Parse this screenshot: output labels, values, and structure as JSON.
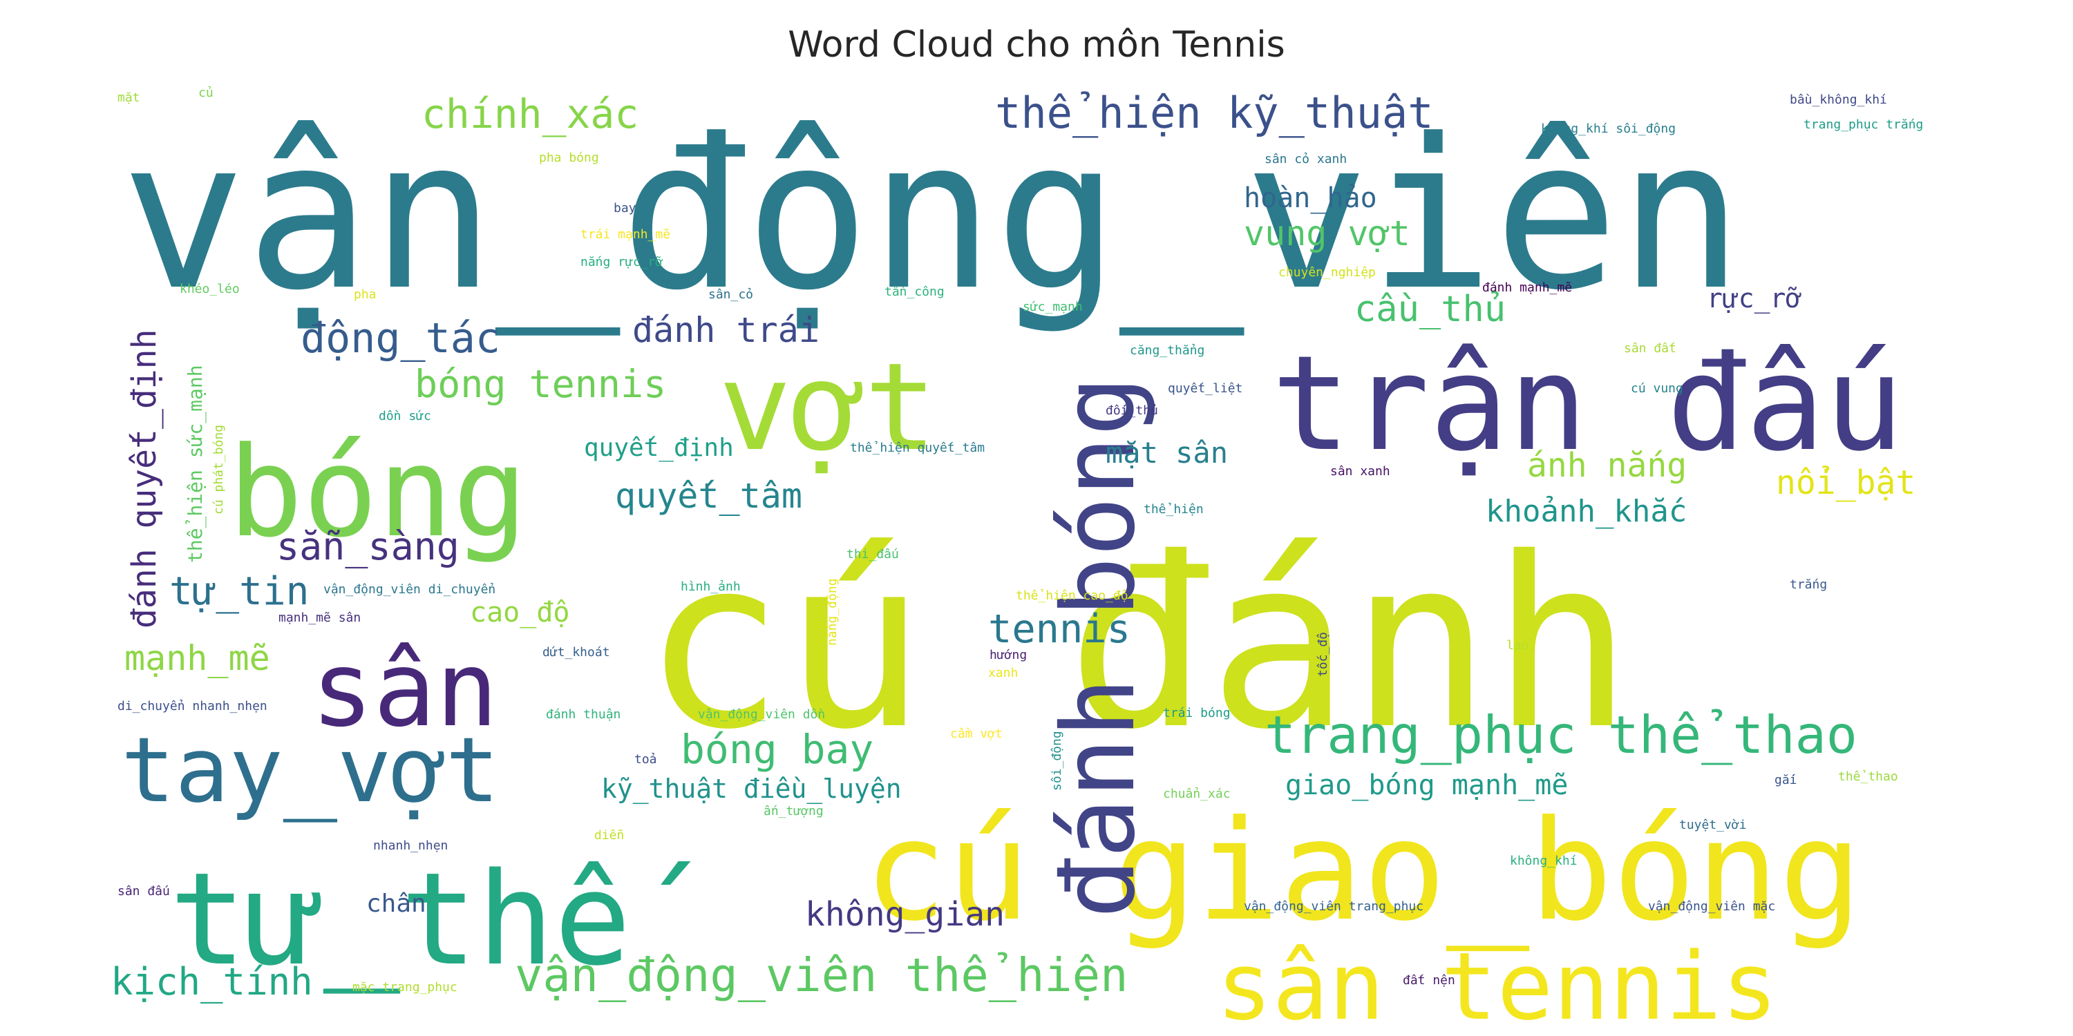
{
  "chart_data": {
    "type": "wordcloud",
    "title": "Word Cloud cho môn Tennis",
    "words": [
      {
        "text": "vận_động_viên",
        "weight": 100,
        "color": "#2c7b8c"
      },
      {
        "text": "cú đánh",
        "weight": 98,
        "color": "#cde11d"
      },
      {
        "text": "trận đấu",
        "weight": 66,
        "color": "#433e85"
      },
      {
        "text": "bóng",
        "weight": 64,
        "color": "#7ad151"
      },
      {
        "text": "vợt",
        "weight": 58,
        "color": "#a5db36"
      },
      {
        "text": "cú giao_bóng",
        "weight": 70,
        "color": "#f1e51d"
      },
      {
        "text": "tư_thế",
        "weight": 64,
        "color": "#23a983"
      },
      {
        "text": "sân",
        "weight": 50,
        "color": "#482979"
      },
      {
        "text": "tay_vợt",
        "weight": 42,
        "color": "#2e6f8e"
      },
      {
        "text": "đánh bóng",
        "weight": 46,
        "color": "#414487"
      },
      {
        "text": "sân tennis",
        "weight": 43,
        "color": "#f4e61e"
      },
      {
        "text": "trang_phục thể_thao",
        "weight": 24,
        "color": "#35b779"
      },
      {
        "text": "vận_động_viên thể_hiện",
        "weight": 21,
        "color": "#5cc863"
      },
      {
        "text": "thể_hiện kỹ_thuật",
        "weight": 19,
        "color": "#3b518b"
      },
      {
        "text": "chính_xác",
        "weight": 18,
        "color": "#86d549"
      },
      {
        "text": "động_tác",
        "weight": 18,
        "color": "#365c8d"
      },
      {
        "text": "đánh trái",
        "weight": 16,
        "color": "#3e4a89"
      },
      {
        "text": "bóng tennis",
        "weight": 17,
        "color": "#6ece58"
      },
      {
        "text": "cầu_thủ",
        "weight": 16,
        "color": "#48c16e"
      },
      {
        "text": "vung vợt",
        "weight": 16,
        "color": "#52c569"
      },
      {
        "text": "hoàn_hảo",
        "weight": 13,
        "color": "#31668e"
      },
      {
        "text": "rực_rỡ",
        "weight": 12,
        "color": "#424086"
      },
      {
        "text": "đánh quyết_định",
        "weight": 15,
        "color": "#472d7b"
      },
      {
        "text": "quyết_tâm",
        "weight": 15,
        "color": "#25858e"
      },
      {
        "text": "quyết_định",
        "weight": 11,
        "color": "#1fa088"
      },
      {
        "text": "mặt sân",
        "weight": 13,
        "color": "#277f8e"
      },
      {
        "text": "ánh nắng",
        "weight": 15,
        "color": "#95d840"
      },
      {
        "text": "nổi_bật",
        "weight": 15,
        "color": "#e2e418"
      },
      {
        "text": "khoảnh_khắc",
        "weight": 14,
        "color": "#1f958b"
      },
      {
        "text": "sẵn_sàng",
        "weight": 17,
        "color": "#46327e"
      },
      {
        "text": "tự_tin",
        "weight": 18,
        "color": "#2d708e"
      },
      {
        "text": "tennis",
        "weight": 18,
        "color": "#2a788e"
      },
      {
        "text": "cao_độ",
        "weight": 12,
        "color": "#93d741"
      },
      {
        "text": "mạnh_mẽ",
        "weight": 16,
        "color": "#8ed645"
      },
      {
        "text": "bóng bay",
        "weight": 18,
        "color": "#3fbc73"
      },
      {
        "text": "giao_bóng mạnh_mẽ",
        "weight": 13,
        "color": "#1f9a8a"
      },
      {
        "text": "kỹ_thuật điều_luyện",
        "weight": 12,
        "color": "#20928c"
      },
      {
        "text": "không_gian",
        "weight": 15,
        "color": "#443983"
      },
      {
        "text": "chân",
        "weight": 11,
        "color": "#38588c"
      },
      {
        "text": "kịch_tính",
        "weight": 17,
        "color": "#22a785"
      },
      {
        "text": "thể_hiện sức_mạnh",
        "weight": 8,
        "color": "#5ec962"
      },
      {
        "text": "bầu_không_khí",
        "weight": 5,
        "color": "#3e4989"
      },
      {
        "text": "không_khí sôi_động",
        "weight": 5,
        "color": "#277e8e"
      },
      {
        "text": "trang_phục trắng",
        "weight": 5,
        "color": "#1e9c89"
      },
      {
        "text": "mặt",
        "weight": 4,
        "color": "#a0da39"
      },
      {
        "text": "củ",
        "weight": 4,
        "color": "#7fd34e"
      },
      {
        "text": "pha bóng",
        "weight": 5,
        "color": "#b5de2b"
      },
      {
        "text": "sân cỏ xanh",
        "weight": 5,
        "color": "#2a768e"
      },
      {
        "text": "bay",
        "weight": 5,
        "color": "#3b528b"
      },
      {
        "text": "trái mạnh_mẽ",
        "weight": 5,
        "color": "#f6e620"
      },
      {
        "text": "nắng rực_rỡ",
        "weight": 5,
        "color": "#29af7f"
      },
      {
        "text": "chuyên_nghiệp",
        "weight": 5,
        "color": "#d2e21b"
      },
      {
        "text": "đánh mạnh_mẽ",
        "weight": 5,
        "color": "#440154"
      },
      {
        "text": "khéo_léo",
        "weight": 5,
        "color": "#63cb5f"
      },
      {
        "text": "pha",
        "weight": 5,
        "color": "#dde318"
      },
      {
        "text": "sân_cỏ",
        "weight": 5,
        "color": "#2d718e"
      },
      {
        "text": "tấn_công",
        "weight": 5,
        "color": "#2db27d"
      },
      {
        "text": "sức_mạnh",
        "weight": 5,
        "color": "#40bd72"
      },
      {
        "text": "căng_thẳng",
        "weight": 5,
        "color": "#1f978b"
      },
      {
        "text": "sân đất",
        "weight": 4,
        "color": "#a8db34"
      },
      {
        "text": "quyết_liệt",
        "weight": 5,
        "color": "#3a548c"
      },
      {
        "text": "cú vung",
        "weight": 5,
        "color": "#26828e"
      },
      {
        "text": "đối_thủ",
        "weight": 5,
        "color": "#453781"
      },
      {
        "text": "dồn sức",
        "weight": 5,
        "color": "#1f9f88"
      },
      {
        "text": "thể_hiện quyết_tâm",
        "weight": 5,
        "color": "#297b8e"
      },
      {
        "text": "cú phát_bóng",
        "weight": 5,
        "color": "#a2da37"
      },
      {
        "text": "sân xanh",
        "weight": 5,
        "color": "#471164"
      },
      {
        "text": "thể_hiện",
        "weight": 5,
        "color": "#24868e"
      },
      {
        "text": "thi_đấu",
        "weight": 5,
        "color": "#4ac16d"
      },
      {
        "text": "hình_ảnh",
        "weight": 5,
        "color": "#27ad81"
      },
      {
        "text": "vận_động_viên di_chuyển",
        "weight": 5,
        "color": "#2a778e"
      },
      {
        "text": "nắng_động",
        "weight": 5,
        "color": "#e5e419"
      },
      {
        "text": "thể_hiện cao_độ",
        "weight": 5,
        "color": "#d8e219"
      },
      {
        "text": "trắng",
        "weight": 5,
        "color": "#38598c"
      },
      {
        "text": "mạnh_mẽ sân",
        "weight": 4,
        "color": "#472f7d"
      },
      {
        "text": "dứt_khoát",
        "weight": 5,
        "color": "#355f8d"
      },
      {
        "text": "hướng",
        "weight": 5,
        "color": "#481f70"
      },
      {
        "text": "xanh",
        "weight": 5,
        "color": "#eae51a"
      },
      {
        "text": "lao",
        "weight": 5,
        "color": "#b8de29"
      },
      {
        "text": "tốc_độ",
        "weight": 5,
        "color": "#3f4788"
      },
      {
        "text": "di_chuyển nhanh_nhẹn",
        "weight": 5,
        "color": "#3c4f8a"
      },
      {
        "text": "đánh thuận",
        "weight": 5,
        "color": "#2fb47c"
      },
      {
        "text": "vận_động_viên dồn",
        "weight": 5,
        "color": "#50c46a"
      },
      {
        "text": "cầm vợt",
        "weight": 5,
        "color": "#fde725"
      },
      {
        "text": "trái bóng",
        "weight": 5,
        "color": "#1e9b8a"
      },
      {
        "text": "toả",
        "weight": 5,
        "color": "#3d4d8a"
      },
      {
        "text": "sôi_động",
        "weight": 5,
        "color": "#21918c"
      },
      {
        "text": "chuẩn_xác",
        "weight": 5,
        "color": "#73d056"
      },
      {
        "text": "gắi",
        "weight": 5,
        "color": "#39568c"
      },
      {
        "text": "thể_thao",
        "weight": 5,
        "color": "#9bd93c"
      },
      {
        "text": "ấn_tượng",
        "weight": 5,
        "color": "#56c667"
      },
      {
        "text": "tuyệt_vời",
        "weight": 5,
        "color": "#2f6c8e"
      },
      {
        "text": "nhanh_nhẹn",
        "weight": 5,
        "color": "#3e4c8a"
      },
      {
        "text": "diễn",
        "weight": 5,
        "color": "#c2df23"
      },
      {
        "text": "không_khí",
        "weight": 5,
        "color": "#2ab07f"
      },
      {
        "text": "sân đấu",
        "weight": 5,
        "color": "#482475"
      },
      {
        "text": "vận_động_viên trang_phục",
        "weight": 5,
        "color": "#33628d"
      },
      {
        "text": "vận_động_viên mặc",
        "weight": 5,
        "color": "#3a538b"
      },
      {
        "text": "mặc trang_phục",
        "weight": 5,
        "color": "#b0dd2f"
      },
      {
        "text": "đất nện",
        "weight": 5,
        "color": "#481a6c"
      }
    ]
  }
}
